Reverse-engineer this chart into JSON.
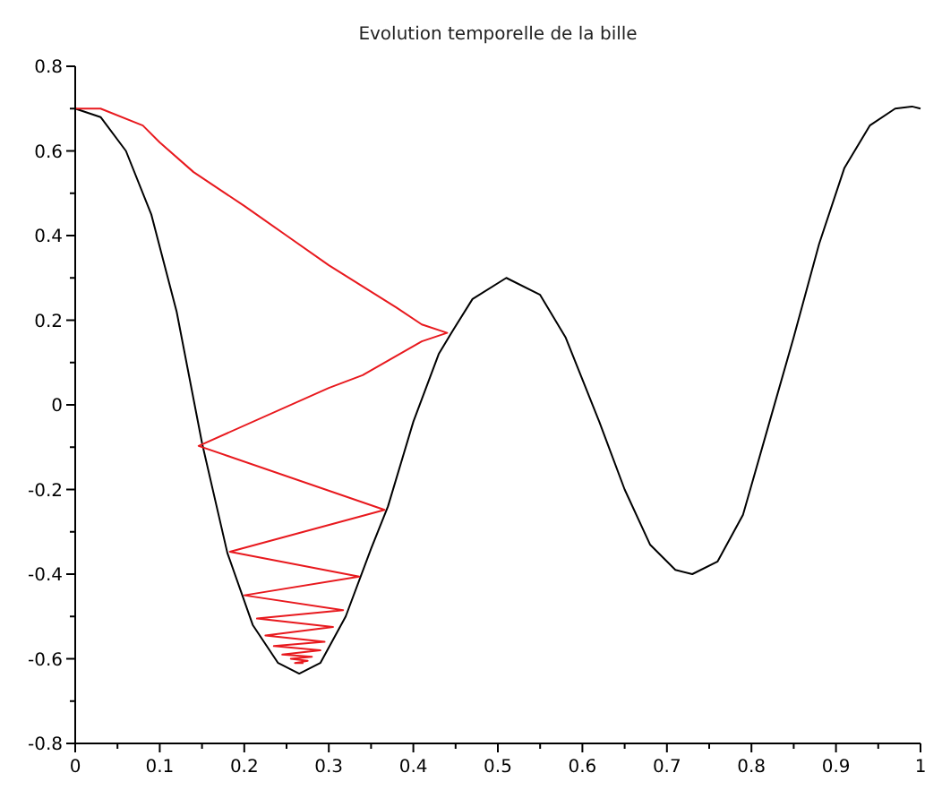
{
  "chart_data": {
    "type": "line",
    "title": "Evolution temporelle de la bille",
    "xlim": [
      0,
      1
    ],
    "ylim": [
      -0.8,
      0.8
    ],
    "xticks": [
      0,
      {
        "value": 0.05,
        "label": null
      },
      0.1,
      {
        "value": 0.15,
        "label": null
      },
      0.2,
      {
        "value": 0.25,
        "label": null
      },
      0.3,
      {
        "value": 0.35,
        "label": null
      },
      0.4,
      {
        "value": 0.45,
        "label": null
      },
      0.5,
      {
        "value": 0.55,
        "label": null
      },
      0.6,
      {
        "value": 0.65,
        "label": null
      },
      0.7,
      {
        "value": 0.75,
        "label": null
      },
      0.8,
      {
        "value": 0.85,
        "label": null
      },
      0.9,
      {
        "value": 0.95,
        "label": null
      },
      1
    ],
    "yticks": [
      -0.8,
      {
        "value": -0.7,
        "label": null
      },
      -0.6,
      {
        "value": -0.5,
        "label": null
      },
      -0.4,
      {
        "value": -0.3,
        "label": null
      },
      -0.2,
      {
        "value": -0.1,
        "label": null
      },
      0,
      {
        "value": 0.1,
        "label": null
      },
      0.2,
      {
        "value": 0.3,
        "label": null
      },
      0.4,
      {
        "value": 0.5,
        "label": null
      },
      0.6,
      {
        "value": 0.7,
        "label": null
      },
      0.8
    ],
    "grid": false,
    "marker": "none",
    "line_style": "solid",
    "series": [
      {
        "color": "#000000",
        "x": [
          0,
          0.03,
          0.06,
          0.09,
          0.12,
          0.15,
          0.18,
          0.21,
          0.24,
          0.265,
          0.29,
          0.32,
          0.35,
          0.37,
          0.4,
          0.43,
          0.445,
          0.47,
          0.51,
          0.55,
          0.58,
          0.62,
          0.65,
          0.68,
          0.71,
          0.73,
          0.76,
          0.79,
          0.82,
          0.85,
          0.88,
          0.91,
          0.94,
          0.97,
          0.99,
          1
        ],
        "values": [
          0.7,
          0.68,
          0.6,
          0.45,
          0.22,
          -0.09,
          -0.35,
          -0.52,
          -0.61,
          -0.635,
          -0.61,
          -0.5,
          -0.34,
          -0.24,
          -0.04,
          0.12,
          0.17,
          0.25,
          0.3,
          0.26,
          0.16,
          -0.04,
          -0.2,
          -0.33,
          -0.39,
          -0.4,
          -0.37,
          -0.26,
          -0.05,
          0.16,
          0.38,
          0.56,
          0.66,
          0.7,
          0.705,
          0.7
        ]
      },
      {
        "color": "#e8191e",
        "x": [
          0,
          0.03,
          0.08,
          0.1,
          0.14,
          0.2,
          0.25,
          0.3,
          0.38,
          0.41,
          0.44,
          0.41,
          0.34,
          0.3,
          0.146,
          0.366,
          0.183,
          0.336,
          0.2,
          0.317,
          0.215,
          0.305,
          0.225,
          0.295,
          0.235,
          0.29,
          0.245,
          0.28,
          0.255,
          0.275,
          0.26,
          0.27
        ],
        "values": [
          0.7,
          0.7,
          0.66,
          0.62,
          0.55,
          0.47,
          0.4,
          0.33,
          0.23,
          0.19,
          0.17,
          0.15,
          0.07,
          0.04,
          -0.097,
          -0.248,
          -0.347,
          -0.406,
          -0.45,
          -0.485,
          -0.505,
          -0.525,
          -0.545,
          -0.56,
          -0.57,
          -0.58,
          -0.59,
          -0.595,
          -0.6,
          -0.605,
          -0.61,
          -0.61
        ]
      }
    ]
  }
}
